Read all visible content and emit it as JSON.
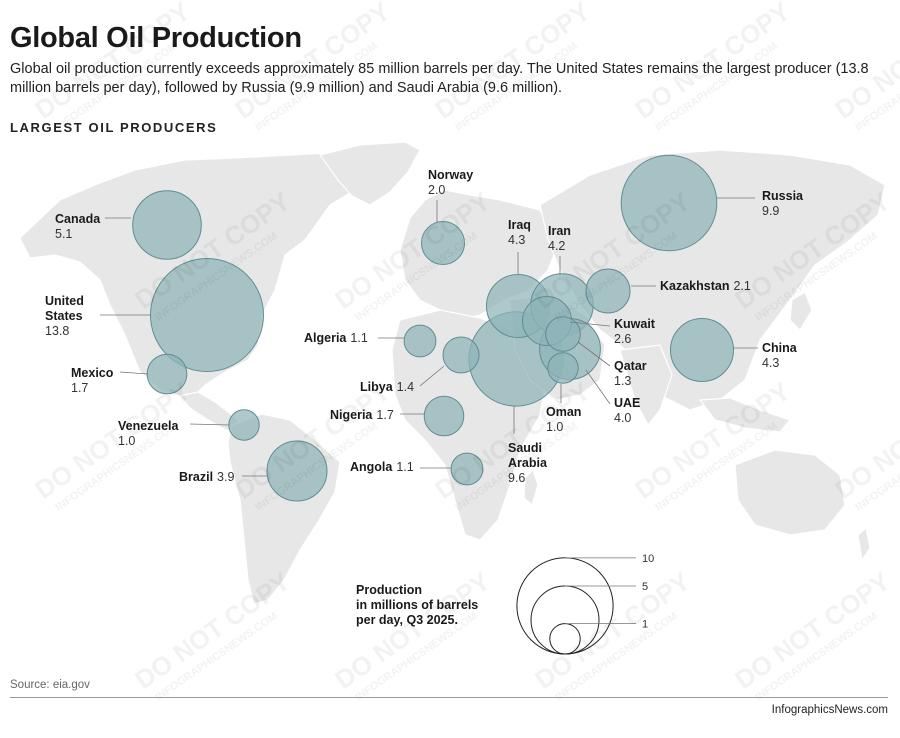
{
  "header": {
    "title": "Global Oil Production",
    "subtitle": "Global oil production currently exceeds approximately 85 million barrels per day. The United States remains the largest producer (13.8 million barrels per day), followed by Russia (9.9 million) and Saudi Arabia (9.6 million).",
    "section_label": "LARGEST OIL PRODUCERS"
  },
  "colors": {
    "bubble": "#8fb4b8",
    "bubble_stroke": "#5f8e93",
    "land": "#e7e7e7"
  },
  "producers": [
    {
      "name": "Canada",
      "value": "5.1"
    },
    {
      "name": "United States",
      "value": "13.8"
    },
    {
      "name": "Mexico",
      "value": "1.7"
    },
    {
      "name": "Venezuela",
      "value": "1.0"
    },
    {
      "name": "Brazil",
      "value": "3.9"
    },
    {
      "name": "Norway",
      "value": "2.0"
    },
    {
      "name": "Algeria",
      "value": "1.1"
    },
    {
      "name": "Libya",
      "value": "1.4"
    },
    {
      "name": "Nigeria",
      "value": "1.7"
    },
    {
      "name": "Angola",
      "value": "1.1"
    },
    {
      "name": "Iraq",
      "value": "4.3"
    },
    {
      "name": "Iran",
      "value": "4.2"
    },
    {
      "name": "Kuwait",
      "value": "2.6"
    },
    {
      "name": "Qatar",
      "value": "1.3"
    },
    {
      "name": "UAE",
      "value": "4.0"
    },
    {
      "name": "Oman",
      "value": "1.0"
    },
    {
      "name": "Saudi Arabia",
      "value": "9.6"
    },
    {
      "name": "Kazakhstan",
      "value": "2.1"
    },
    {
      "name": "Russia",
      "value": "9.9"
    },
    {
      "name": "China",
      "value": "4.3"
    }
  ],
  "legend": {
    "title_lines": [
      "Production",
      "in millions of barrels",
      "per day, Q3 2025."
    ],
    "values": [
      "10",
      "5",
      "1"
    ]
  },
  "footer": {
    "source": "Source: eia.gov",
    "credit": "InfographicsNews.com"
  },
  "watermark": {
    "line1": "DO NOT COPY",
    "line2": "INFOGRAPHICSNEWS.COM"
  }
}
